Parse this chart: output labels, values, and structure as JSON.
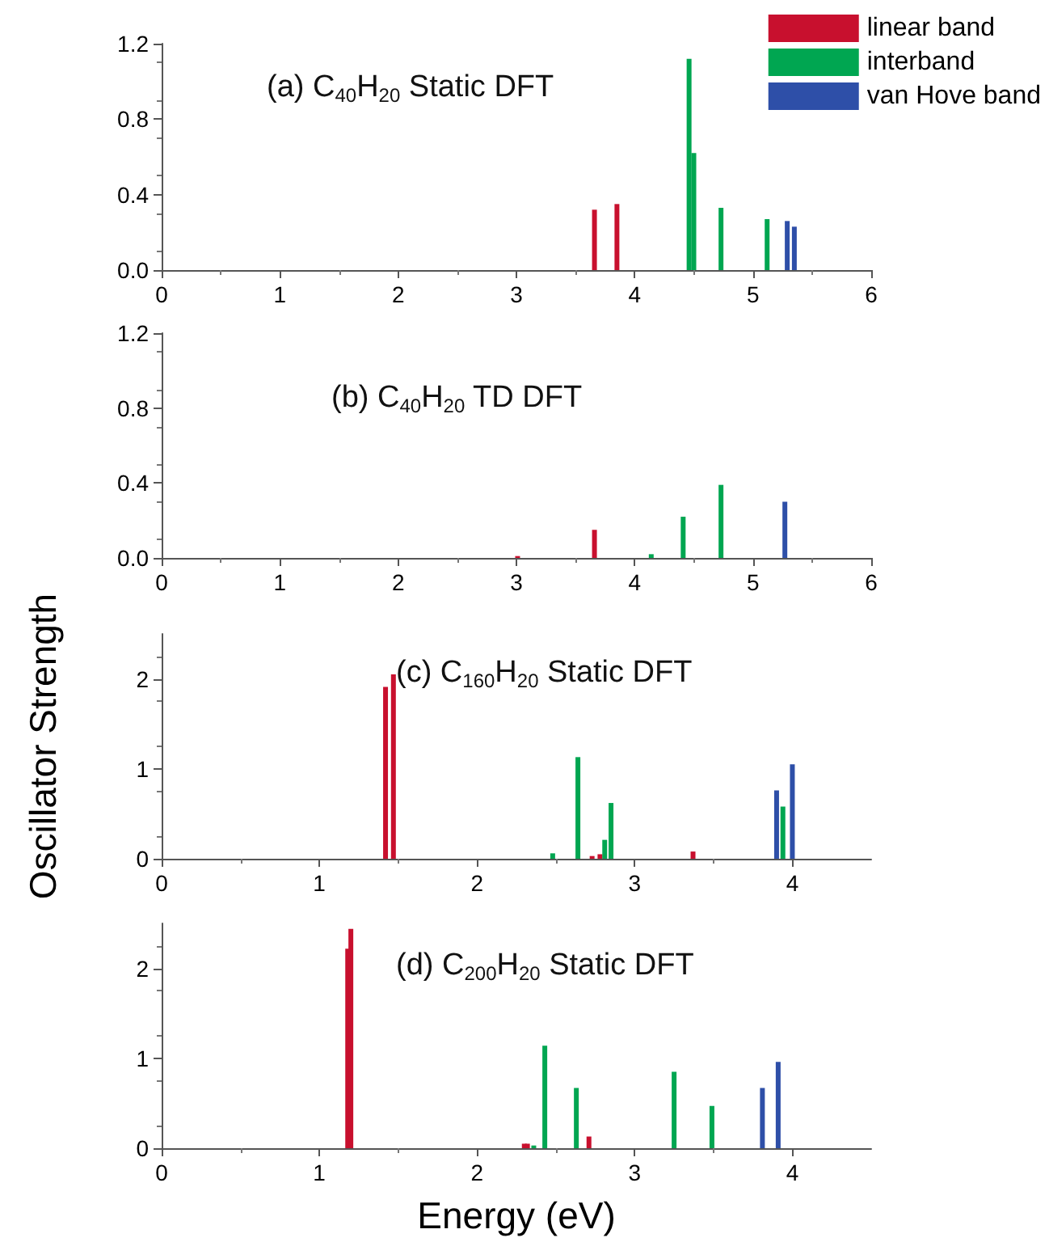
{
  "chart_data": [
    {
      "type": "bar",
      "title": "(a) C$_{40}$H$_{20}$ Static DFT",
      "legend": "top right",
      "xlim": [
        0,
        6
      ],
      "xticks": [
        0,
        1,
        2,
        3,
        4,
        5,
        6
      ],
      "ylim": [
        0,
        1.2
      ],
      "yticks": [
        {
          "value": 0,
          "label": "0.0"
        },
        {
          "value": 0.4,
          "label": "0.4"
        },
        {
          "value": 0.8,
          "label": "0.8"
        },
        {
          "value": 1.2,
          "label": "1.2"
        }
      ],
      "series": [
        {
          "name": "linear band",
          "color": "#c8102e",
          "x": [
            3.66,
            3.85
          ],
          "values": [
            0.32,
            0.35
          ]
        },
        {
          "name": "interband",
          "color": "#00a651",
          "x": [
            4.46,
            4.5,
            4.73,
            5.12
          ],
          "values": [
            1.12,
            0.62,
            0.33,
            0.27
          ]
        },
        {
          "name": "van Hove band",
          "color": "#2e4fa8",
          "x": [
            5.29,
            5.35
          ],
          "values": [
            0.26,
            0.23
          ]
        }
      ]
    },
    {
      "type": "bar",
      "title": "(b) C$_{40}$H$_{20}$ TD DFT",
      "xlim": [
        0,
        6
      ],
      "xticks": [
        0,
        1,
        2,
        3,
        4,
        5,
        6
      ],
      "ylim": [
        0,
        1.2
      ],
      "yticks": [
        {
          "value": 0,
          "label": "0.0"
        },
        {
          "value": 0.4,
          "label": "0.4"
        },
        {
          "value": 0.8,
          "label": "0.8"
        },
        {
          "value": 1.2,
          "label": "1.2"
        }
      ],
      "series": [
        {
          "color": "#c8102e",
          "x": [
            3.01,
            3.66
          ],
          "values": [
            0.01,
            0.15
          ]
        },
        {
          "color": "#00a651",
          "x": [
            4.14,
            4.41,
            4.73
          ],
          "values": [
            0.02,
            0.22,
            0.39
          ]
        },
        {
          "color": "#2e4fa8",
          "x": [
            5.27
          ],
          "values": [
            0.3
          ]
        }
      ]
    },
    {
      "type": "bar",
      "title": "(c) C$_{160}$H$_{20}$ Static DFT",
      "ylabel": "Oscillator Strength",
      "xlim": [
        0,
        4.5
      ],
      "xticks": [
        0,
        1,
        2,
        3,
        4
      ],
      "ylim": [
        0,
        2.5
      ],
      "yticks": [
        0,
        1,
        2
      ],
      "series": [
        {
          "color": "#c8102e",
          "x": [
            1.42,
            1.47,
            2.73,
            2.78,
            3.37
          ],
          "values": [
            1.91,
            2.05,
            0.03,
            0.05,
            0.08
          ]
        },
        {
          "color": "#00a651",
          "x": [
            2.48,
            2.64,
            2.81,
            2.85,
            3.94
          ],
          "values": [
            0.06,
            1.13,
            0.21,
            0.62,
            0.58
          ]
        },
        {
          "color": "#2e4fa8",
          "x": [
            3.9,
            4.0
          ],
          "values": [
            0.76,
            1.05
          ]
        }
      ]
    },
    {
      "type": "bar",
      "title": "(d) C$_{200}$H$_{20}$ Static DFT",
      "xlabel": "Energy (eV)",
      "xlim": [
        0,
        4.5
      ],
      "xticks": [
        0,
        1,
        2,
        3,
        4
      ],
      "ylim": [
        0,
        2.5
      ],
      "yticks": [
        0,
        1,
        2
      ],
      "series": [
        {
          "color": "#c8102e",
          "x": [
            1.18,
            1.2,
            2.3,
            2.32,
            2.71
          ],
          "values": [
            2.22,
            2.44,
            0.05,
            0.05,
            0.13
          ]
        },
        {
          "color": "#00a651",
          "x": [
            2.36,
            2.43,
            2.63,
            3.25,
            3.49
          ],
          "values": [
            0.03,
            1.14,
            0.67,
            0.85,
            0.47
          ]
        },
        {
          "color": "#2e4fa8",
          "x": [
            3.81,
            3.91
          ],
          "values": [
            0.67,
            0.96
          ]
        }
      ]
    }
  ]
}
